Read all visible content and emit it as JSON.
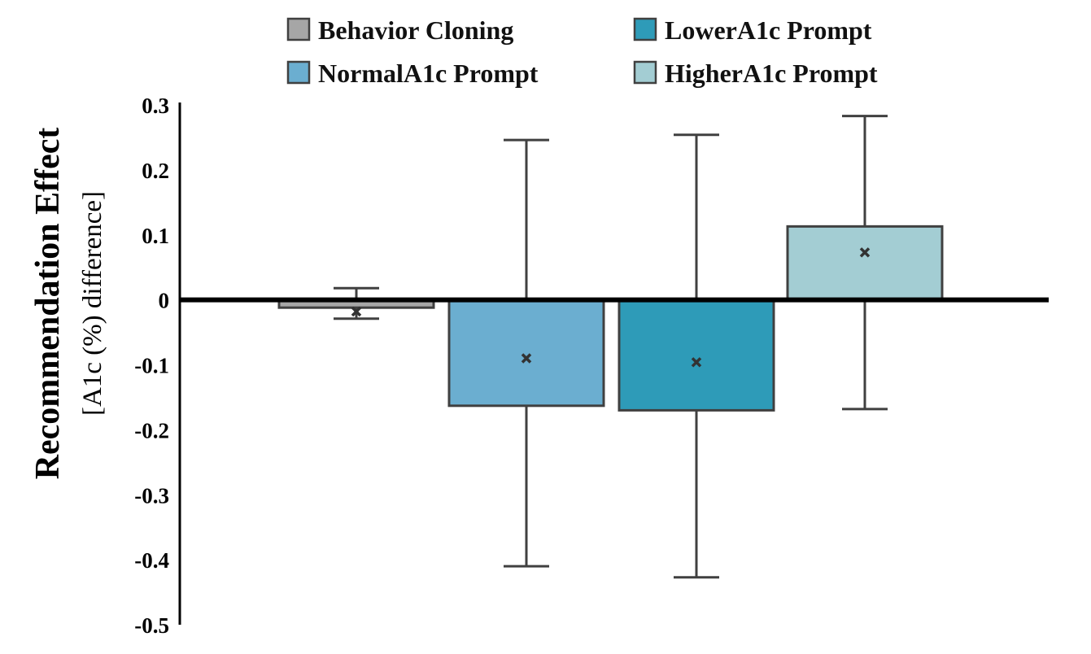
{
  "chart_data": {
    "type": "bar",
    "categories": [
      "Behavior Cloning",
      "NormalA1c Prompt",
      "LowerA1c Prompt",
      "HigherA1c Prompt"
    ],
    "series": [
      {
        "name": "Behavior Cloning",
        "color": "#a6a6a6",
        "bar_top": 0,
        "bar_bottom": -0.012,
        "mean": -0.018,
        "whisker_high": 0.018,
        "whisker_low": -0.029
      },
      {
        "name": "NormalA1c Prompt",
        "color": "#6baed0",
        "bar_top": 0,
        "bar_bottom": -0.163,
        "mean": -0.09,
        "whisker_high": 0.246,
        "whisker_low": -0.41
      },
      {
        "name": "LowerA1c Prompt",
        "color": "#2e9bb8",
        "bar_top": 0,
        "bar_bottom": -0.17,
        "mean": -0.096,
        "whisker_high": 0.254,
        "whisker_low": -0.427
      },
      {
        "name": "HigherA1c Prompt",
        "color": "#a3cdd3",
        "bar_top": 0.113,
        "bar_bottom": 0,
        "mean": 0.073,
        "whisker_high": 0.283,
        "whisker_low": -0.168
      }
    ],
    "ylim": [
      -0.5,
      0.3
    ],
    "yticks": [
      "0.3",
      "0.2",
      "0.1",
      "0",
      "-0.1",
      "-0.2",
      "-0.3",
      "-0.4",
      "-0.5"
    ],
    "ylabel": "Recommendation Effect",
    "ylabel_sub": "[A1c (%) difference]",
    "legend": [
      {
        "label": "Behavior Cloning",
        "color": "#a6a6a6"
      },
      {
        "label": "LowerA1c Prompt",
        "color": "#2e9bb8"
      },
      {
        "label": "NormalA1c Prompt",
        "color": "#6baed0"
      },
      {
        "label": "HigherA1c Prompt",
        "color": "#a3cdd3"
      }
    ],
    "legend_position": "top",
    "grid": false
  }
}
